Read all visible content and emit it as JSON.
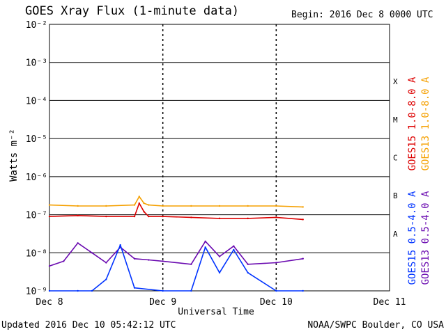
{
  "header": {
    "title": "GOES Xray Flux (1-minute data)",
    "begin": "Begin:  2016 Dec 8 0000 UTC"
  },
  "footer": {
    "updated": "Updated 2016 Dec 10 05:42:12 UTC",
    "credit": "NOAA/SWPC Boulder, CO USA"
  },
  "chart_data": {
    "type": "line",
    "title": "GOES Xray Flux (1-minute data)",
    "xlabel": "Universal Time",
    "ylabel": "Watts m⁻²",
    "yscale": "log",
    "ylim": [
      1e-09,
      0.01
    ],
    "ytick_labels": [
      "10⁻⁹",
      "10⁻⁸",
      "10⁻⁷",
      "10⁻⁶",
      "10⁻⁵",
      "10⁻⁴",
      "10⁻³",
      "10⁻²"
    ],
    "x_ticks": [
      "Dec 8",
      "Dec 9",
      "Dec 10",
      "Dec 11"
    ],
    "xlim": [
      "2016-12-08 00:00",
      "2016-12-11 00:00"
    ],
    "flare_classes": [
      "A",
      "B",
      "C",
      "M",
      "X"
    ],
    "colors": {
      "GOES15 1.0-8.0 A": "#dd0000",
      "GOES13 1.0-8.0 A": "#f5a000",
      "GOES15 0.5-4.0 A": "#0033ff",
      "GOES13 0.5-4.0 A": "#6a0ab0"
    },
    "series": [
      {
        "name": "GOES13 1.0-8.0 A",
        "x": [
          "2016-12-08 00:00",
          "2016-12-08 06:00",
          "2016-12-08 12:00",
          "2016-12-08 18:00",
          "2016-12-08 19:00",
          "2016-12-08 20:00",
          "2016-12-08 21:00",
          "2016-12-09 00:00",
          "2016-12-09 06:00",
          "2016-12-09 12:00",
          "2016-12-09 18:00",
          "2016-12-10 00:00",
          "2016-12-10 05:40"
        ],
        "values": [
          1.8e-07,
          1.7e-07,
          1.7e-07,
          1.8e-07,
          3e-07,
          2e-07,
          1.8e-07,
          1.7e-07,
          1.7e-07,
          1.7e-07,
          1.7e-07,
          1.7e-07,
          1.6e-07
        ]
      },
      {
        "name": "GOES15 1.0-8.0 A",
        "x": [
          "2016-12-08 00:00",
          "2016-12-08 06:00",
          "2016-12-08 12:00",
          "2016-12-08 18:00",
          "2016-12-08 19:00",
          "2016-12-08 20:00",
          "2016-12-08 21:00",
          "2016-12-09 00:00",
          "2016-12-09 06:00",
          "2016-12-09 12:00",
          "2016-12-09 18:00",
          "2016-12-10 00:00",
          "2016-12-10 05:40"
        ],
        "values": [
          9e-08,
          9.5e-08,
          9e-08,
          9e-08,
          2e-07,
          1.2e-07,
          9e-08,
          9e-08,
          8.5e-08,
          8e-08,
          8e-08,
          8.5e-08,
          7.5e-08
        ]
      },
      {
        "name": "GOES13 0.5-4.0 A",
        "x": [
          "2016-12-08 00:00",
          "2016-12-08 03:00",
          "2016-12-08 06:00",
          "2016-12-08 09:00",
          "2016-12-08 12:00",
          "2016-12-08 15:00",
          "2016-12-08 18:00",
          "2016-12-08 21:00",
          "2016-12-09 00:00",
          "2016-12-09 06:00",
          "2016-12-09 09:00",
          "2016-12-09 12:00",
          "2016-12-09 15:00",
          "2016-12-09 18:00",
          "2016-12-10 00:00",
          "2016-12-10 05:40"
        ],
        "values": [
          4.5e-09,
          6e-09,
          1.8e-08,
          1e-08,
          5.5e-09,
          1.4e-08,
          7e-09,
          6.5e-09,
          6e-09,
          5e-09,
          2e-08,
          8e-09,
          1.5e-08,
          5e-09,
          5.5e-09,
          7e-09
        ]
      },
      {
        "name": "GOES15 0.5-4.0 A",
        "x": [
          "2016-12-08 00:00",
          "2016-12-08 06:00",
          "2016-12-08 09:00",
          "2016-12-08 12:00",
          "2016-12-08 15:00",
          "2016-12-08 18:00",
          "2016-12-09 00:00",
          "2016-12-09 06:00",
          "2016-12-09 09:00",
          "2016-12-09 12:00",
          "2016-12-09 15:00",
          "2016-12-09 18:00",
          "2016-12-10 00:00",
          "2016-12-10 05:40"
        ],
        "values": [
          1e-09,
          1e-09,
          1e-09,
          2e-09,
          1.6e-08,
          1.2e-09,
          1e-09,
          1e-09,
          1.4e-08,
          3e-09,
          1.2e-08,
          3e-09,
          1e-09,
          1e-09
        ]
      }
    ]
  }
}
